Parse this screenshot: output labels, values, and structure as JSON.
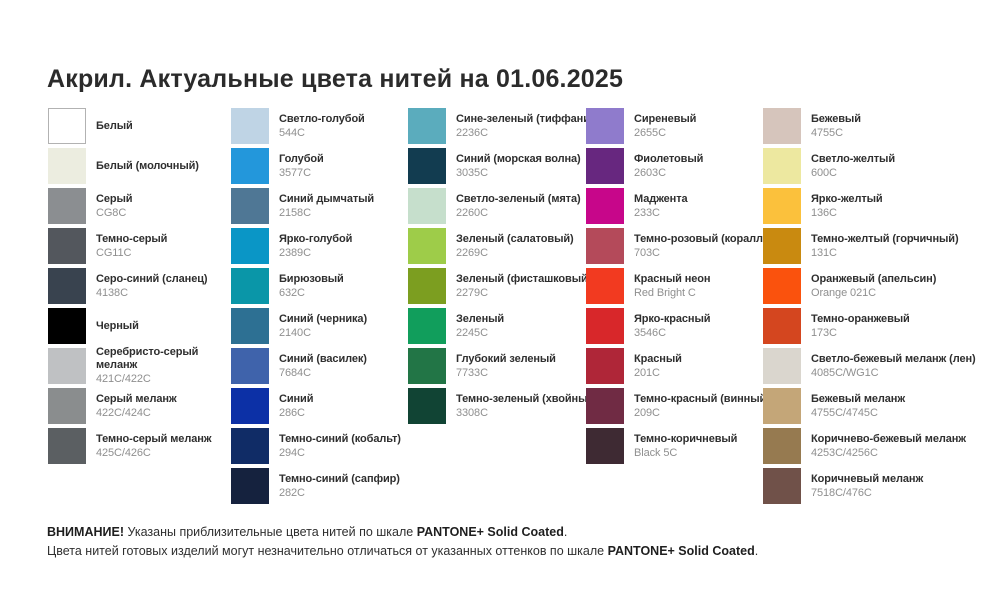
{
  "page": {
    "title": "Акрил. Актуальные цвета нитей на 01.06.2025",
    "background": "#FFFFFF"
  },
  "footer": {
    "line1": {
      "attention_bold": "ВНИМАНИЕ!",
      "text": " Указаны приблизительные цвета нитей по шкале ",
      "brand_bold": "PANTONE+ Solid Coated",
      "suffix": "."
    },
    "line2": {
      "text": "Цвета нитей готовых изделий могут незначительно отличаться от указанных оттенков по шкале ",
      "brand_bold": "PANTONE+ Solid Coated",
      "suffix": "."
    }
  },
  "columns": [
    {
      "items": [
        {
          "name": "Белый",
          "code": "",
          "color": "#FFFFFF",
          "bordered": true
        },
        {
          "name": "Белый (молочный)",
          "code": "",
          "color": "#ECEDE0"
        },
        {
          "name": "Серый",
          "code": "CG8C",
          "color": "#8B8E91"
        },
        {
          "name": "Темно-серый",
          "code": "CG11C",
          "color": "#53575D"
        },
        {
          "name": "Серо-синий (сланец)",
          "code": "4138C",
          "color": "#39434F"
        },
        {
          "name": "Черный",
          "code": "",
          "color": "#000000"
        },
        {
          "name": "Серебристо-серый\nмеланж",
          "code": "421C/422C",
          "color": "#BFC1C3"
        },
        {
          "name": "Серый меланж",
          "code": "422C/424C",
          "color": "#8A8D8E"
        },
        {
          "name": "Темно-серый меланж",
          "code": "425C/426C",
          "color": "#5B5F62"
        }
      ]
    },
    {
      "items": [
        {
          "name": "Светло-голубой",
          "code": "544C",
          "color": "#BFD4E5"
        },
        {
          "name": "Голубой",
          "code": "3577C",
          "color": "#2397DB"
        },
        {
          "name": "Синий дымчатый",
          "code": "2158C",
          "color": "#4F7795"
        },
        {
          "name": "Ярко-голубой",
          "code": "2389C",
          "color": "#0A96C6"
        },
        {
          "name": "Бирюзовый",
          "code": "632C",
          "color": "#0A96A8"
        },
        {
          "name": "Синий (черника)",
          "code": "2140C",
          "color": "#2D7093"
        },
        {
          "name": "Синий (василек)",
          "code": "7684C",
          "color": "#3F63AB"
        },
        {
          "name": "Синий",
          "code": "286C",
          "color": "#0C30A6"
        },
        {
          "name": "Темно-синий (кобальт)",
          "code": "294C",
          "color": "#102C66"
        },
        {
          "name": "Темно-синий (сапфир)",
          "code": "282C",
          "color": "#15223E"
        }
      ]
    },
    {
      "items": [
        {
          "name": "Сине-зеленый (тиффани)",
          "code": "2236C",
          "color": "#5BACBD"
        },
        {
          "name": "Синий (морская волна)",
          "code": "3035C",
          "color": "#123C50"
        },
        {
          "name": "Светло-зеленый (мята)",
          "code": "2260C",
          "color": "#C6DFCC"
        },
        {
          "name": "Зеленый (салатовый)",
          "code": "2269C",
          "color": "#9ECC49"
        },
        {
          "name": "Зеленый (фисташковый)",
          "code": "2279C",
          "color": "#7C9E20"
        },
        {
          "name": "Зеленый",
          "code": "2245C",
          "color": "#119E5C"
        },
        {
          "name": "Глубокий зеленый",
          "code": "7733C",
          "color": "#227546"
        },
        {
          "name": "Темно-зеленый (хвойный)",
          "code": "3308C",
          "color": "#114434"
        }
      ]
    },
    {
      "items": [
        {
          "name": "Сиреневый",
          "code": "2655C",
          "color": "#8F7BCC"
        },
        {
          "name": "Фиолетовый",
          "code": "2603C",
          "color": "#67277F"
        },
        {
          "name": "Маджента",
          "code": "233C",
          "color": "#C7068A"
        },
        {
          "name": "Темно-розовый (коралл)",
          "code": "703C",
          "color": "#B44A5A"
        },
        {
          "name": "Красный неон",
          "code": "Red Bright C",
          "color": "#F23A20"
        },
        {
          "name": "Ярко-красный",
          "code": "3546C",
          "color": "#D8272A"
        },
        {
          "name": "Красный",
          "code": "201C",
          "color": "#AF2638"
        },
        {
          "name": "Темно-красный (винный)",
          "code": "209C",
          "color": "#702B44"
        },
        {
          "name": "Темно-коричневый",
          "code": "Black 5C",
          "color": "#3E2A33"
        }
      ]
    },
    {
      "items": [
        {
          "name": "Бежевый",
          "code": "4755C",
          "color": "#D6C5BC"
        },
        {
          "name": "Светло-желтый",
          "code": "600C",
          "color": "#EDE8A0"
        },
        {
          "name": "Ярко-желтый",
          "code": "136C",
          "color": "#FBC13C"
        },
        {
          "name": "Темно-желтый (горчичный)",
          "code": "131C",
          "color": "#C98A10"
        },
        {
          "name": "Оранжевый (апельсин)",
          "code": "Orange 021C",
          "color": "#FA520D"
        },
        {
          "name": "Темно-оранжевый",
          "code": "173C",
          "color": "#D4461F"
        },
        {
          "name": "Светло-бежевый меланж (лен)",
          "code": "4085C/WG1C",
          "color": "#DAD6CE"
        },
        {
          "name": "Бежевый меланж",
          "code": "4755C/4745C",
          "color": "#C4A678"
        },
        {
          "name": "Коричнево-бежевый меланж",
          "code": "4253C/4256C",
          "color": "#967A50"
        },
        {
          "name": "Коричневый меланж",
          "code": "7518C/476C",
          "color": "#705149"
        }
      ]
    }
  ]
}
